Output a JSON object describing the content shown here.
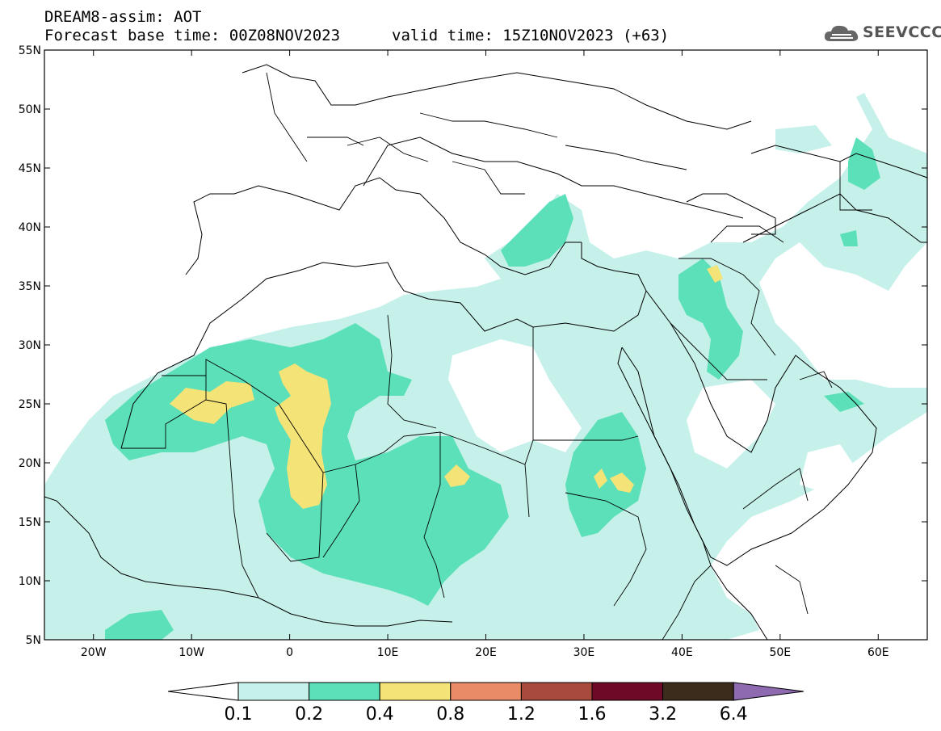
{
  "header": {
    "title": "DREAM8-assim: AOT",
    "base_time": "Forecast base time: 00Z08NOV2023",
    "valid_time": "valid time: 15Z10NOV2023 (+63)"
  },
  "logo": {
    "text": "SEEVCCC",
    "icon": "cloud-icon"
  },
  "axes": {
    "lat_labels": [
      "55N",
      "50N",
      "45N",
      "40N",
      "35N",
      "30N",
      "25N",
      "20N",
      "15N",
      "10N",
      "5N"
    ],
    "lon_labels": [
      "20W",
      "10W",
      "0",
      "10E",
      "20E",
      "30E",
      "40E",
      "50E",
      "60E"
    ],
    "lon_range": [
      -25,
      65
    ],
    "lat_range": [
      5,
      55
    ]
  },
  "colorbar": {
    "labels": [
      "0.1",
      "0.2",
      "0.4",
      "0.8",
      "1.2",
      "1.6",
      "3.2",
      "6.4"
    ],
    "colors": [
      "#ffffff",
      "#c6f1ea",
      "#5ce0b9",
      "#f4e477",
      "#ea8b67",
      "#a84a3c",
      "#6e0a28",
      "#3c2c1c",
      "#8e6ab0"
    ]
  },
  "colors": {
    "aot_low": "#c6f1ea",
    "aot_mid": "#5ce0b9",
    "aot_high": "#f4e477",
    "border": "#000000"
  }
}
